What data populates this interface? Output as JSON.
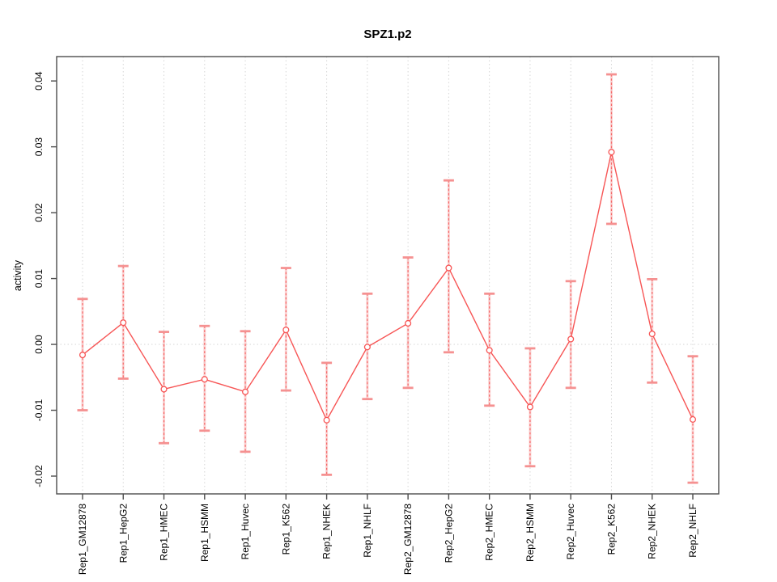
{
  "chart_data": {
    "type": "line",
    "title": "SPZ1.p2",
    "xlabel": "",
    "ylabel": "activity",
    "legend": "none",
    "grid": {
      "vertical_per_category": true,
      "horizontal_zero_line": true,
      "style": "dotted-gray"
    },
    "ylim": [
      -0.0227,
      0.0437
    ],
    "ytick_values": [
      -0.02,
      -0.01,
      0.0,
      0.01,
      0.02,
      0.03,
      0.04
    ],
    "ytick_labels": [
      "-0.02",
      "-0.01",
      "0.00",
      "0.01",
      "0.02",
      "0.03",
      "0.04"
    ],
    "categories": [
      "Rep1_GM12878",
      "Rep1_HepG2",
      "Rep1_HMEC",
      "Rep1_HSMM",
      "Rep1_Huvec",
      "Rep1_K562",
      "Rep1_NHEK",
      "Rep1_NHLF",
      "Rep2_GM12878",
      "Rep2_HepG2",
      "Rep2_HMEC",
      "Rep2_HSMM",
      "Rep2_Huvec",
      "Rep2_K562",
      "Rep2_NHEK",
      "Rep2_NHLF"
    ],
    "series": [
      {
        "name": "activity",
        "marker": "open-circle",
        "values": [
          -0.0016,
          0.0033,
          -0.0068,
          -0.0053,
          -0.0072,
          0.0022,
          -0.0115,
          -0.0004,
          0.0032,
          0.0116,
          -0.0009,
          -0.0095,
          0.0008,
          0.0292,
          0.0016,
          -0.0114
        ],
        "err_hi": [
          0.0069,
          0.0119,
          0.0019,
          0.0028,
          0.002,
          0.0116,
          -0.0028,
          0.0077,
          0.0132,
          0.0249,
          0.0077,
          -0.0006,
          0.0096,
          0.041,
          0.0099,
          -0.0018
        ],
        "err_lo": [
          -0.01,
          -0.0052,
          -0.015,
          -0.0131,
          -0.0163,
          -0.007,
          -0.0198,
          -0.0083,
          -0.0066,
          -0.0012,
          -0.0093,
          -0.0185,
          -0.0066,
          0.0183,
          -0.0058,
          -0.021
        ]
      }
    ],
    "colors": {
      "line": "#f75555",
      "point": "#f75555",
      "error_dash": "#f75555",
      "error_band": "#f87e7e",
      "error_cap": "#f59191",
      "grid": "#d6d6d6",
      "box": "#4d4d4d",
      "text": "#000000",
      "background": "#ffffff"
    }
  }
}
